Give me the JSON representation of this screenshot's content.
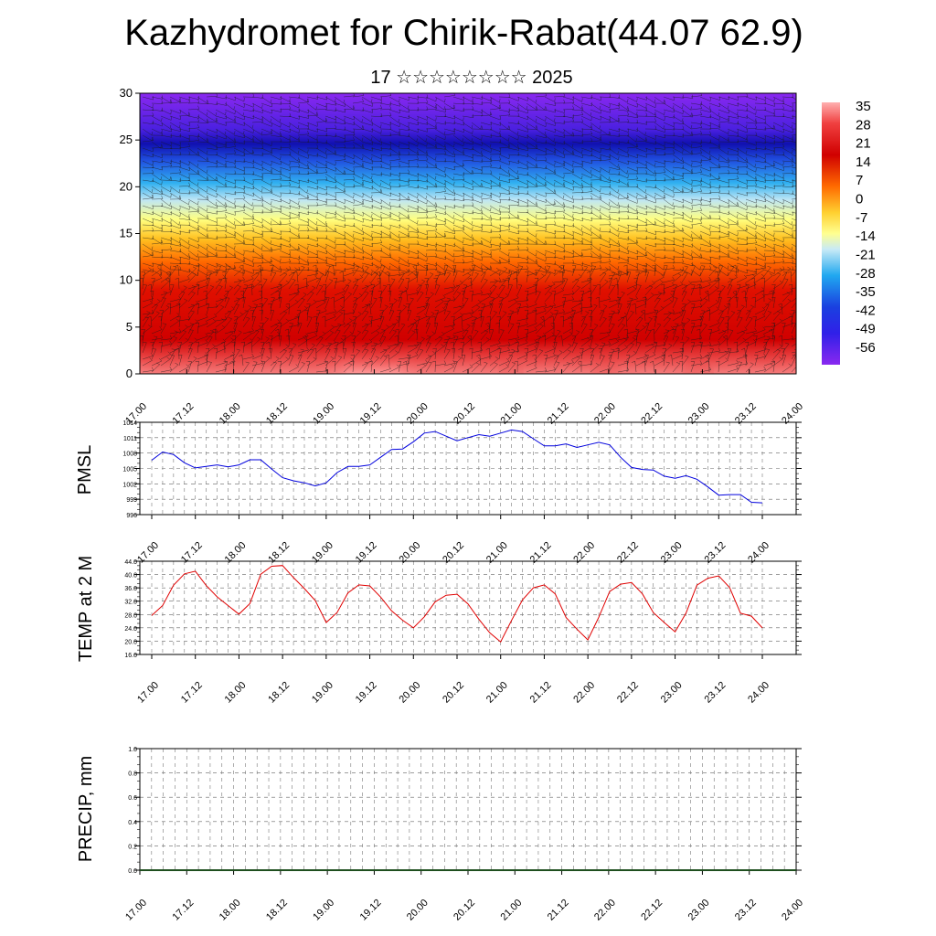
{
  "page": {
    "title": "Kazhydromet for Chirik-Rabat(44.07 62.9)",
    "subtitle": "17 ☆☆☆☆☆☆☆☆ 2025"
  },
  "colors": {
    "pmsl_line": "#0000dd",
    "temp_line": "#e00000",
    "precip_baseline": "#1f4f1f",
    "colormap": [
      "#ff9a9a",
      "#e00000",
      "#ff6a00",
      "#ffff60",
      "#b8e0f0",
      "#1aa0e8",
      "#1010d0",
      "#8a20f0"
    ]
  },
  "chart_data": [
    {
      "type": "heatmap",
      "name": "vertical-profile",
      "title": "",
      "xlabel": "",
      "ylabel": "",
      "ylim": [
        0,
        30
      ],
      "yticks": [
        0,
        5,
        10,
        15,
        20,
        25,
        30
      ],
      "xticks": [
        "17.00",
        "17.12",
        "18.00",
        "18.12",
        "19.00",
        "19.12",
        "20.00",
        "20.12",
        "21.00",
        "21.12",
        "22.00",
        "22.12",
        "23.00",
        "23.12",
        "24.00"
      ],
      "colorbar_labels": [
        "35",
        "28",
        "21",
        "14",
        "7",
        "0",
        "-7",
        "-14",
        "-21",
        "-28",
        "-35",
        "-42",
        "-49",
        "-56"
      ],
      "overlay": "wind barbs"
    },
    {
      "type": "line",
      "name": "pmsl",
      "ylabel": "PMSL",
      "ylim": [
        996,
        1014
      ],
      "yticks": [
        "996",
        "999",
        "1002",
        "1005",
        "1008",
        "1011",
        "1014"
      ],
      "xticks": [
        "17.00",
        "17.12",
        "18.00",
        "18.12",
        "19.00",
        "19.12",
        "20.00",
        "20.12",
        "21.00",
        "21.12",
        "22.00",
        "22.12",
        "23.00",
        "23.12",
        "24.00"
      ],
      "x": [
        0,
        3,
        6,
        9,
        12,
        15,
        18,
        21,
        24,
        27,
        30,
        33,
        36,
        39,
        42,
        45,
        48,
        51,
        54,
        57,
        60,
        63,
        66,
        69,
        72,
        75,
        78,
        81,
        84,
        87,
        90,
        93,
        96,
        99,
        102,
        105,
        108,
        111,
        114,
        117,
        120,
        123,
        126,
        129,
        132,
        135,
        138,
        141,
        144,
        147,
        150,
        153,
        156,
        159,
        162,
        165,
        168
      ],
      "series": [
        {
          "values": [
            1006.6,
            1008.2,
            1007.7,
            1006.1,
            1005.1,
            1005.4,
            1005.7,
            1005.3,
            1005.7,
            1006.7,
            1006.7,
            1004.9,
            1003.2,
            1002.6,
            1002.2,
            1001.6,
            1002.2,
            1004.2,
            1005.4,
            1005.4,
            1005.7,
            1007.2,
            1008.7,
            1008.8,
            1010.2,
            1011.9,
            1012.2,
            1011.3,
            1010.4,
            1011.0,
            1011.6,
            1011.3,
            1011.9,
            1012.5,
            1012.2,
            1010.8,
            1009.4,
            1009.4,
            1009.8,
            1009.1,
            1009.6,
            1010.1,
            1009.6,
            1007.2,
            1005.2,
            1004.8,
            1004.7,
            1003.5,
            1003.1,
            1003.6,
            1002.9,
            1001.4,
            999.8,
            999.9,
            999.9,
            998.4,
            998.3
          ]
        }
      ]
    },
    {
      "type": "line",
      "name": "temp-2m",
      "ylabel": "TEMP at 2 M",
      "ylim": [
        16,
        44
      ],
      "yticks": [
        "16.0",
        "20.0",
        "24.0",
        "28.0",
        "32.0",
        "36.0",
        "40.0",
        "44.0"
      ],
      "xticks": [
        "17.00",
        "17.12",
        "18.00",
        "18.12",
        "19.00",
        "19.12",
        "20.00",
        "20.12",
        "21.00",
        "21.12",
        "22.00",
        "22.12",
        "23.00",
        "23.12",
        "24.00"
      ],
      "x": [
        0,
        3,
        6,
        9,
        12,
        15,
        18,
        21,
        24,
        27,
        30,
        33,
        36,
        39,
        42,
        45,
        48,
        51,
        54,
        57,
        60,
        63,
        66,
        69,
        72,
        75,
        78,
        81,
        84,
        87,
        90,
        93,
        96,
        99,
        102,
        105,
        108,
        111,
        114,
        117,
        120,
        123,
        126,
        129,
        132,
        135,
        138,
        141,
        144,
        147,
        150,
        153,
        156,
        159,
        162,
        165,
        168
      ],
      "series": [
        {
          "values": [
            27.7,
            30.7,
            36.8,
            40.2,
            41.0,
            36.7,
            33.3,
            30.7,
            28.1,
            31.3,
            40.1,
            42.5,
            42.7,
            39.1,
            35.8,
            32.2,
            25.6,
            28.6,
            34.5,
            36.9,
            36.6,
            33.2,
            29.1,
            26.3,
            24.0,
            27.3,
            31.8,
            33.8,
            34.1,
            31.2,
            26.6,
            22.5,
            19.8,
            26.2,
            32.4,
            36.0,
            36.9,
            34.2,
            27.1,
            23.6,
            20.4,
            27.2,
            34.9,
            37.1,
            37.6,
            34.2,
            28.6,
            25.6,
            22.8,
            28.4,
            36.8,
            38.9,
            39.6,
            36.1,
            28.4,
            27.5,
            24.0
          ]
        }
      ]
    },
    {
      "type": "line",
      "name": "precip",
      "ylabel": "PRECIP, mm",
      "ylim": [
        0,
        1
      ],
      "yticks": [
        "0.0",
        "0.2",
        "0.4",
        "0.6",
        "0.8",
        "1.0"
      ],
      "xticks": [
        "17.00",
        "17.12",
        "18.00",
        "18.12",
        "19.00",
        "19.12",
        "20.00",
        "20.12",
        "21.00",
        "21.12",
        "22.00",
        "22.12",
        "23.00",
        "23.12",
        "24.00"
      ],
      "series": [
        {
          "values": [
            0,
            0,
            0,
            0,
            0,
            0,
            0,
            0,
            0,
            0,
            0,
            0,
            0,
            0,
            0,
            0,
            0,
            0,
            0,
            0,
            0,
            0,
            0,
            0,
            0,
            0,
            0,
            0,
            0,
            0,
            0,
            0,
            0,
            0,
            0,
            0,
            0,
            0,
            0,
            0,
            0,
            0,
            0,
            0,
            0,
            0,
            0,
            0,
            0,
            0,
            0,
            0,
            0,
            0,
            0,
            0,
            0
          ]
        }
      ]
    }
  ]
}
